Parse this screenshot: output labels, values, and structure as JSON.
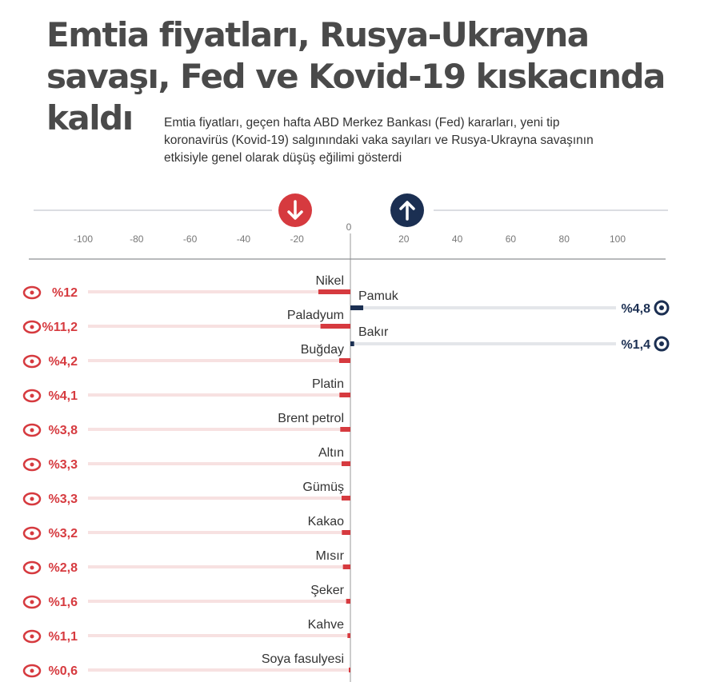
{
  "title_lines": [
    "Emtia fiyatları, Rusya-Ukrayna",
    "savaşı, Fed ve Kovid-19 kıskacında",
    "kaldı"
  ],
  "subtitle": "Emtia fiyatları, geçen hafta ABD Merkez Bankası (Fed) kararları, yeni tip koronavirüs (Kovid-19) salgınındaki vaka sayıları ve Rusya-Ukrayna savaşının etkisiyle genel olarak düşüş eğilimi gösterdi",
  "colors": {
    "down": "#d63a3f",
    "up": "#1b2f52",
    "track": "#e4e6ea",
    "pale_down": "#f7e1e1",
    "axis": "#999999"
  },
  "icons": {
    "down": "down-arrow-icon",
    "up": "up-arrow-icon"
  },
  "chart_data": {
    "type": "bar",
    "orientation": "horizontal",
    "xlim": [
      -100,
      100
    ],
    "ticks": [
      -100,
      -80,
      -60,
      -40,
      -20,
      0,
      20,
      40,
      60,
      80,
      100
    ],
    "grid": false,
    "decreases": [
      {
        "name": "Nikel",
        "value": -12,
        "label": "%12",
        "icon": "nickel-icon"
      },
      {
        "name": "Paladyum",
        "value": -11.2,
        "label": "%11,2",
        "icon": "palladium-icon"
      },
      {
        "name": "Buğday",
        "value": -4.2,
        "label": "%4,2",
        "icon": "wheat-icon"
      },
      {
        "name": "Platin",
        "value": -4.1,
        "label": "%4,1",
        "icon": "platinum-icon"
      },
      {
        "name": "Brent petrol",
        "value": -3.8,
        "label": "%3,8",
        "icon": "oil-can-icon"
      },
      {
        "name": "Altın",
        "value": -3.3,
        "label": "%3,3",
        "icon": "gold-icon"
      },
      {
        "name": "Gümüş",
        "value": -3.3,
        "label": "%3,3",
        "icon": "silver-icon"
      },
      {
        "name": "Kakao",
        "value": -3.2,
        "label": "%3,2",
        "icon": "cocoa-icon"
      },
      {
        "name": "Mısır",
        "value": -2.8,
        "label": "%2,8",
        "icon": "corn-icon"
      },
      {
        "name": "Şeker",
        "value": -1.6,
        "label": "%1,6",
        "icon": "sugar-icon"
      },
      {
        "name": "Kahve",
        "value": -1.1,
        "label": "%1,1",
        "icon": "coffee-icon"
      },
      {
        "name": "Soya fasulyesi",
        "value": -0.6,
        "label": "%0,6",
        "icon": "soybean-icon"
      }
    ],
    "increases": [
      {
        "name": "Pamuk",
        "value": 4.8,
        "label": "%4,8",
        "icon": "cotton-icon"
      },
      {
        "name": "Bakır",
        "value": 1.4,
        "label": "%1,4",
        "icon": "copper-icon"
      }
    ]
  }
}
